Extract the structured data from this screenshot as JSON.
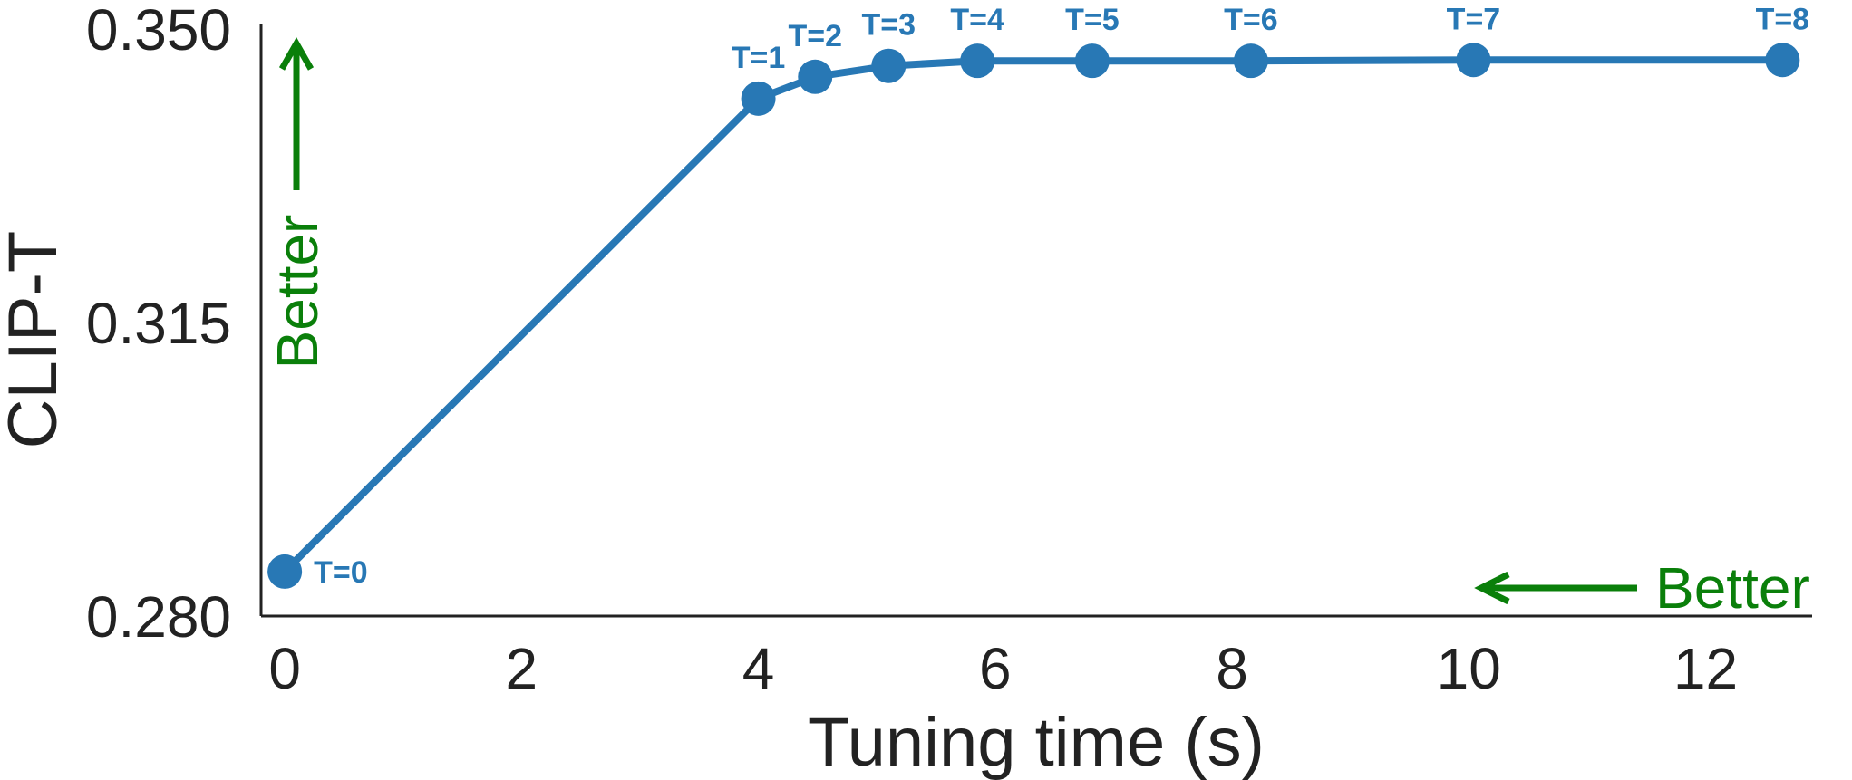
{
  "chart_data": {
    "type": "line",
    "xlabel": "Tuning time (s)",
    "ylabel": "CLIP-T",
    "xlim": [
      -0.2,
      12.9
    ],
    "ylim": [
      0.28,
      0.35
    ],
    "xticks": [
      0,
      2,
      4,
      6,
      8,
      10,
      12
    ],
    "xtick_labels": [
      "0",
      "2",
      "4",
      "6",
      "8",
      "10",
      "12"
    ],
    "yticks": [
      0.28,
      0.315,
      0.35
    ],
    "ytick_labels": [
      "0.280",
      "0.315",
      "0.350"
    ],
    "grid": false,
    "series": [
      {
        "x": [
          0.0,
          4.0,
          4.48,
          5.1,
          5.85,
          6.82,
          8.16,
          10.04,
          12.65
        ],
        "y": [
          0.2853,
          0.3417,
          0.3443,
          0.3456,
          0.3462,
          0.3462,
          0.3462,
          0.3463,
          0.3463
        ],
        "point_labels": [
          "T=0",
          "T=1",
          "T=2",
          "T=3",
          "T=4",
          "T=5",
          "T=6",
          "T=7",
          "T=8"
        ],
        "color": "#2878b5"
      }
    ],
    "annotations": [
      {
        "text": "Better",
        "direction": "up",
        "color": "#0a7f0a"
      },
      {
        "text": "Better",
        "direction": "left",
        "color": "#0a7f0a"
      }
    ]
  }
}
